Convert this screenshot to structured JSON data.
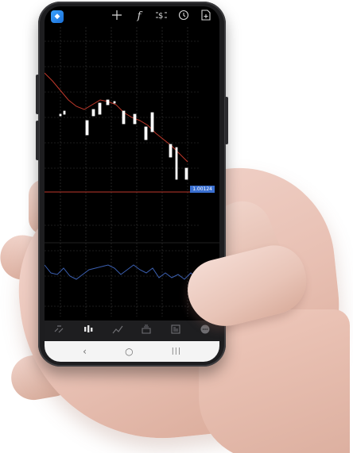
{
  "toolbar": {
    "app_icon": "metatrader-app-icon",
    "icons": [
      "crosshair-icon",
      "function-icon",
      "currency-icon",
      "clock-icon",
      "new-order-icon"
    ],
    "function_glyph": "f"
  },
  "chart": {
    "price_label": "1.00124",
    "colors": {
      "background": "#000000",
      "grid": "#3a3a3a",
      "candle": "#ffffff",
      "ma_line": "#c0392b",
      "price_line": "#c0392b",
      "indicator_line": "#3b5fb0",
      "price_tag": "#3a6fd0"
    }
  },
  "bottom_nav": {
    "items": [
      "quotes-icon",
      "chart-icon",
      "trade-icon",
      "history-icon",
      "news-icon",
      "messages-icon"
    ],
    "active": "chart-icon"
  },
  "system_nav": {
    "back": "‹",
    "home": "○",
    "recents": "|||"
  }
}
